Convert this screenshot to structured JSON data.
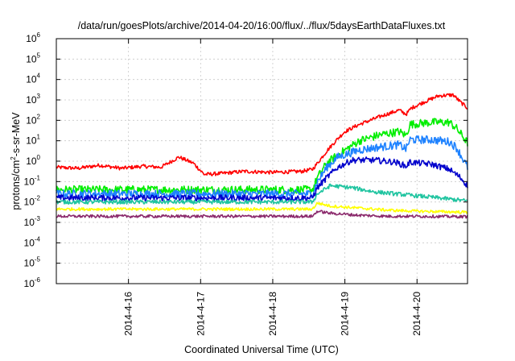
{
  "chart_data": {
    "type": "line",
    "title": "/data/run/goesPlots/archive/2014-04-20/16:00/flux/../flux/5daysEarthDataFluxes.txt",
    "xlabel": "Coordinated Universal Time (UTC)",
    "ylabel": {
      "pre": "protons/cm",
      "sup": "2",
      "post": "-s-sr-MeV"
    },
    "yscale": "log",
    "ylim_exp": [
      -6,
      6
    ],
    "y_tick_exponents": [
      6,
      5,
      4,
      3,
      2,
      1,
      0,
      -1,
      -2,
      -3,
      -4,
      -5,
      -6
    ],
    "xlim_days": [
      15.0,
      20.7
    ],
    "x_ticks": [
      {
        "day": 16,
        "label": "2014-4-16"
      },
      {
        "day": 17,
        "label": "2014-4-17"
      },
      {
        "day": 18,
        "label": "2014-4-18"
      },
      {
        "day": 19,
        "label": "2014-4-19"
      },
      {
        "day": 20,
        "label": "2014-4-20"
      }
    ],
    "grid": true,
    "legend": "none",
    "series": [
      {
        "color": "#ff0000",
        "noise": 0.09,
        "log10_points": [
          [
            15.0,
            -0.3
          ],
          [
            15.3,
            -0.35
          ],
          [
            15.6,
            -0.2
          ],
          [
            15.9,
            -0.35
          ],
          [
            16.2,
            -0.25
          ],
          [
            16.45,
            -0.3
          ],
          [
            16.7,
            0.2
          ],
          [
            16.9,
            -0.1
          ],
          [
            17.05,
            -0.65
          ],
          [
            17.3,
            -0.6
          ],
          [
            17.6,
            -0.5
          ],
          [
            18.0,
            -0.55
          ],
          [
            18.4,
            -0.5
          ],
          [
            18.55,
            -0.4
          ],
          [
            18.62,
            -0.1
          ],
          [
            18.75,
            0.5
          ],
          [
            18.9,
            1.1
          ],
          [
            19.0,
            1.45
          ],
          [
            19.2,
            1.8
          ],
          [
            19.5,
            2.2
          ],
          [
            19.75,
            2.5
          ],
          [
            19.85,
            2.3
          ],
          [
            19.92,
            2.6
          ],
          [
            20.1,
            2.9
          ],
          [
            20.3,
            3.2
          ],
          [
            20.5,
            3.25
          ],
          [
            20.6,
            2.9
          ],
          [
            20.7,
            2.6
          ]
        ]
      },
      {
        "color": "#00ee00",
        "noise": 0.2,
        "log10_points": [
          [
            15.0,
            -1.4
          ],
          [
            16.0,
            -1.4
          ],
          [
            17.0,
            -1.4
          ],
          [
            18.0,
            -1.4
          ],
          [
            18.55,
            -1.4
          ],
          [
            18.62,
            -0.8
          ],
          [
            18.75,
            -0.1
          ],
          [
            18.9,
            0.3
          ],
          [
            19.2,
            1.0
          ],
          [
            19.5,
            1.3
          ],
          [
            19.75,
            1.45
          ],
          [
            19.85,
            1.25
          ],
          [
            19.9,
            1.8
          ],
          [
            20.2,
            1.9
          ],
          [
            20.45,
            1.9
          ],
          [
            20.55,
            1.6
          ],
          [
            20.7,
            0.9
          ]
        ]
      },
      {
        "color": "#1e82ff",
        "noise": 0.2,
        "log10_points": [
          [
            15.0,
            -1.6
          ],
          [
            16.0,
            -1.6
          ],
          [
            17.0,
            -1.6
          ],
          [
            18.0,
            -1.6
          ],
          [
            18.55,
            -1.6
          ],
          [
            18.62,
            -1.0
          ],
          [
            18.75,
            -0.3
          ],
          [
            18.9,
            0.2
          ],
          [
            19.2,
            0.55
          ],
          [
            19.5,
            0.7
          ],
          [
            19.75,
            0.8
          ],
          [
            19.85,
            0.6
          ],
          [
            19.9,
            1.05
          ],
          [
            20.2,
            1.05
          ],
          [
            20.45,
            0.95
          ],
          [
            20.55,
            0.65
          ],
          [
            20.7,
            -0.3
          ]
        ]
      },
      {
        "color": "#0000cc",
        "noise": 0.15,
        "log10_points": [
          [
            15.0,
            -1.8
          ],
          [
            16.0,
            -1.8
          ],
          [
            17.0,
            -1.8
          ],
          [
            18.0,
            -1.8
          ],
          [
            18.55,
            -1.8
          ],
          [
            18.62,
            -1.3
          ],
          [
            18.75,
            -0.8
          ],
          [
            18.9,
            -0.3
          ],
          [
            19.1,
            0.05
          ],
          [
            19.4,
            0.05
          ],
          [
            19.7,
            -0.05
          ],
          [
            19.85,
            -0.25
          ],
          [
            19.9,
            -0.05
          ],
          [
            20.2,
            -0.15
          ],
          [
            20.45,
            -0.4
          ],
          [
            20.6,
            -0.8
          ],
          [
            20.7,
            -1.2
          ]
        ]
      },
      {
        "color": "#1fc4a0",
        "noise": 0.1,
        "log10_points": [
          [
            15.0,
            -2.0
          ],
          [
            16.0,
            -2.0
          ],
          [
            17.0,
            -2.0
          ],
          [
            18.0,
            -2.0
          ],
          [
            18.55,
            -2.0
          ],
          [
            18.62,
            -1.6
          ],
          [
            18.8,
            -1.2
          ],
          [
            19.1,
            -1.3
          ],
          [
            19.4,
            -1.5
          ],
          [
            19.7,
            -1.6
          ],
          [
            20.0,
            -1.7
          ],
          [
            20.3,
            -1.8
          ],
          [
            20.7,
            -1.95
          ]
        ]
      },
      {
        "color": "#ffff00",
        "noise": 0.07,
        "log10_points": [
          [
            15.0,
            -2.35
          ],
          [
            16.0,
            -2.35
          ],
          [
            17.0,
            -2.35
          ],
          [
            18.0,
            -2.35
          ],
          [
            18.55,
            -2.35
          ],
          [
            18.62,
            -2.05
          ],
          [
            18.8,
            -2.2
          ],
          [
            19.2,
            -2.3
          ],
          [
            19.6,
            -2.4
          ],
          [
            20.0,
            -2.45
          ],
          [
            20.7,
            -2.5
          ]
        ]
      },
      {
        "color": "#8b2a6c",
        "noise": 0.07,
        "log10_points": [
          [
            15.0,
            -2.7
          ],
          [
            16.0,
            -2.7
          ],
          [
            17.0,
            -2.7
          ],
          [
            18.0,
            -2.7
          ],
          [
            18.55,
            -2.7
          ],
          [
            18.62,
            -2.45
          ],
          [
            18.8,
            -2.55
          ],
          [
            19.2,
            -2.65
          ],
          [
            19.6,
            -2.7
          ],
          [
            20.0,
            -2.7
          ],
          [
            20.7,
            -2.72
          ]
        ]
      }
    ]
  }
}
